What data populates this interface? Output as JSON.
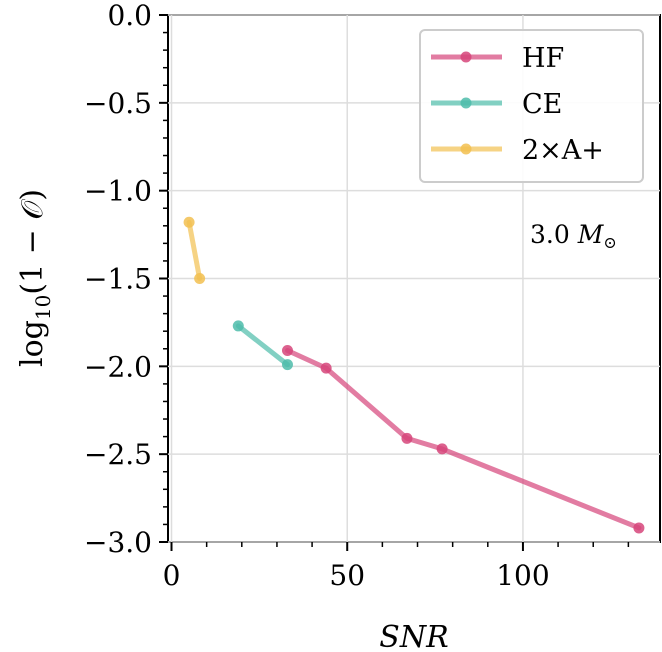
{
  "chart_data": {
    "type": "line",
    "xlabel": "SNR",
    "ylabel": "log10(1 − 𝒪)",
    "ylabel_parts": {
      "pre": "log",
      "sub": "10",
      "post": "(1 − 𝒪)"
    },
    "xlim": [
      -1,
      139
    ],
    "ylim": [
      -3.0,
      0.0
    ],
    "xticks": [
      0,
      50,
      100
    ],
    "xtick_labels": [
      "0",
      "50",
      "100"
    ],
    "yticks": [
      0.0,
      -0.5,
      -1.0,
      -1.5,
      -2.0,
      -2.5,
      -3.0
    ],
    "ytick_labels": [
      "0.0",
      "−0.5",
      "−1.0",
      "−1.5",
      "−2.0",
      "−2.5",
      "−3.0"
    ],
    "grid": true,
    "legend_position": "top-right",
    "annotation": {
      "text": "3.0",
      "unit": "M",
      "unit_sub": "⊙"
    },
    "series": [
      {
        "name": "HF",
        "color": "#d6457a",
        "x": [
          33,
          44,
          67,
          77,
          133
        ],
        "y": [
          -1.91,
          -2.01,
          -2.41,
          -2.47,
          -2.92
        ]
      },
      {
        "name": "CE",
        "color": "#4dbcaa",
        "x": [
          19,
          33
        ],
        "y": [
          -1.77,
          -1.99
        ]
      },
      {
        "name": "2×A+",
        "color": "#f2c050",
        "x": [
          5,
          8
        ],
        "y": [
          -1.18,
          -1.5
        ]
      }
    ]
  }
}
